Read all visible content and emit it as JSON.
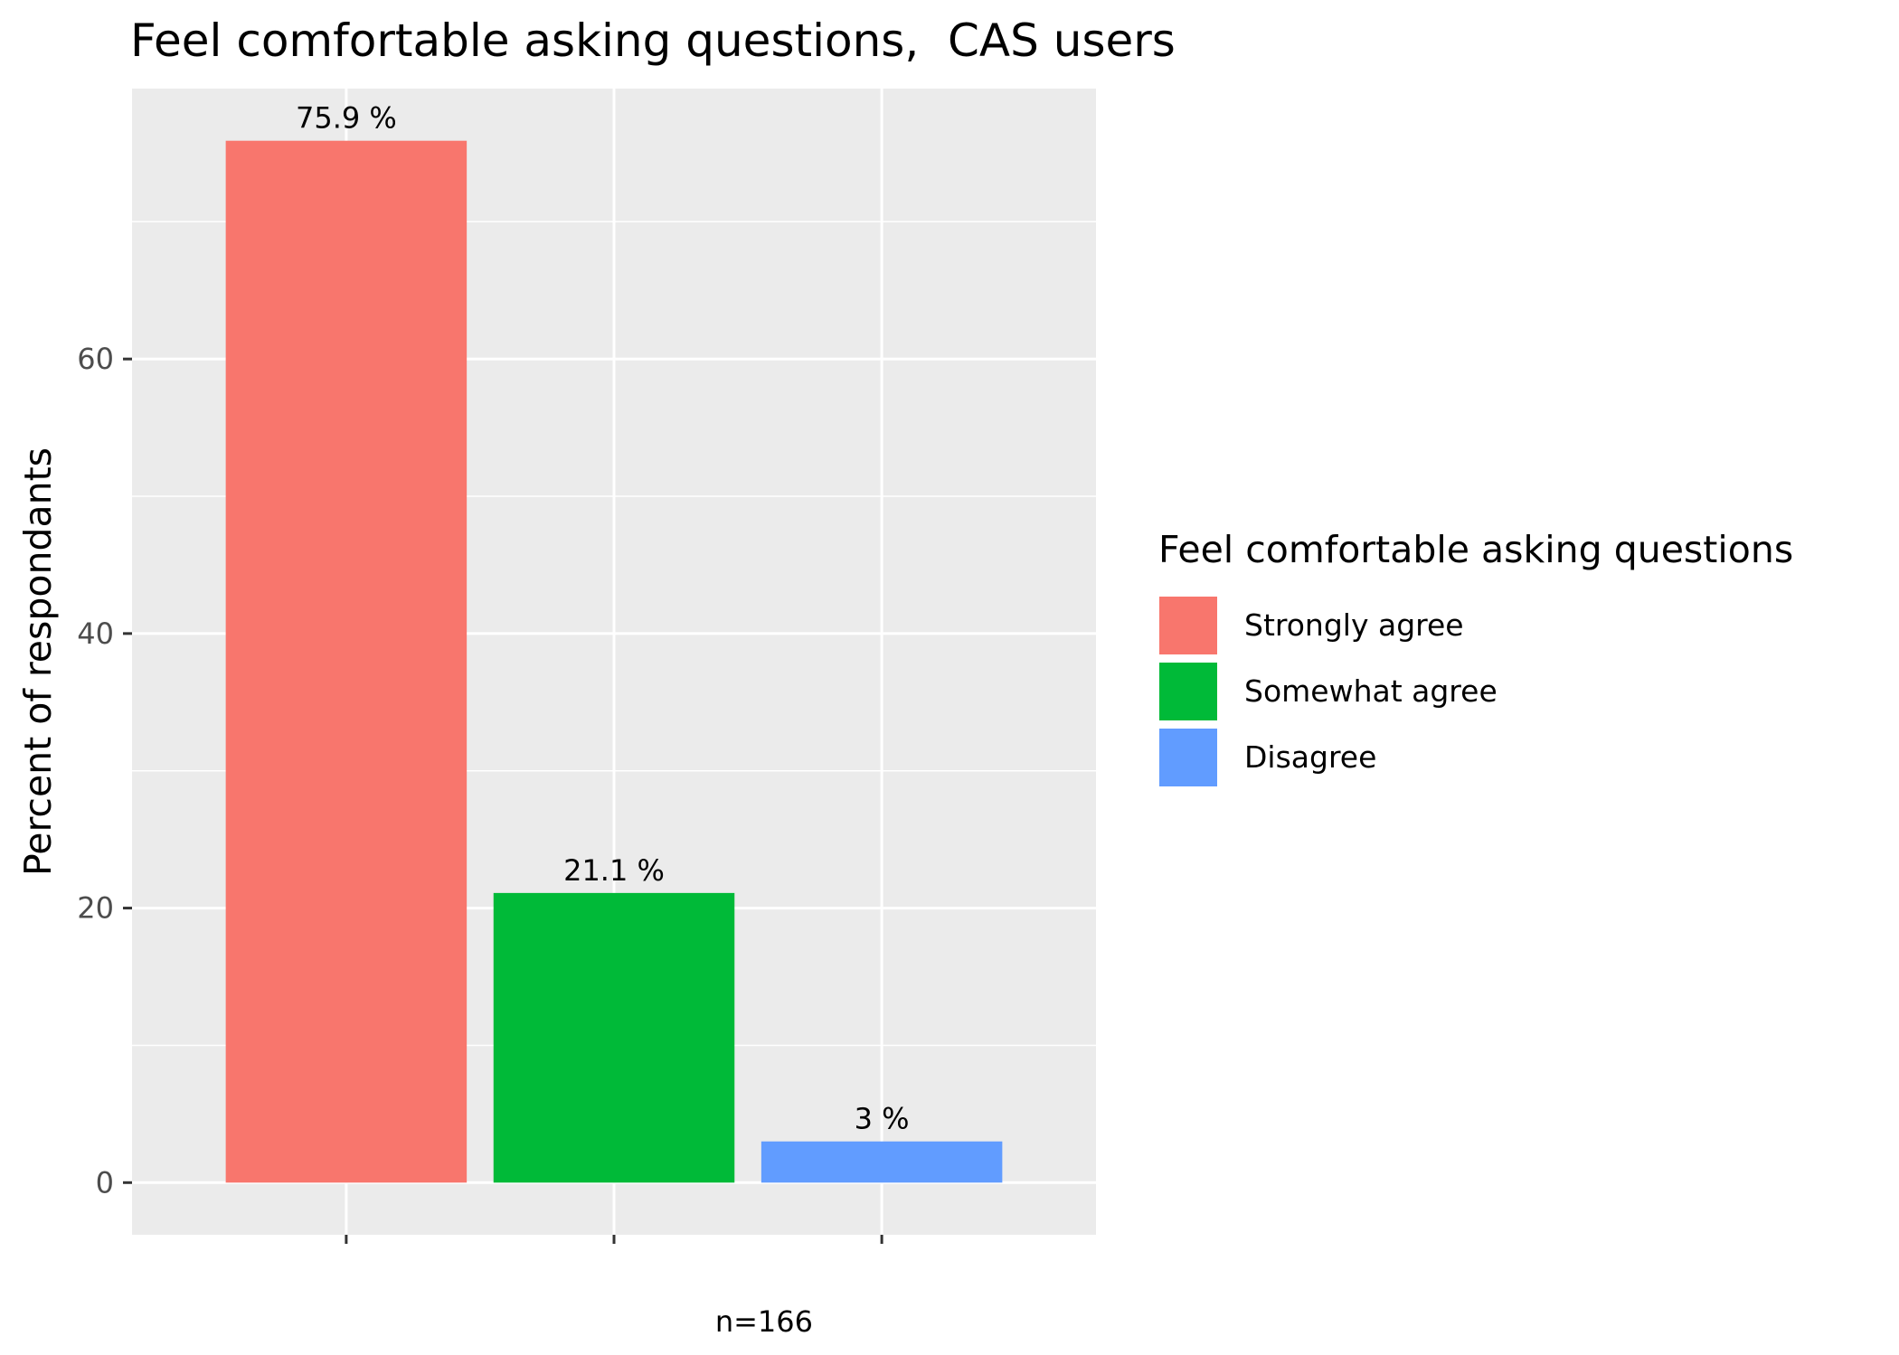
{
  "chart_data": {
    "type": "bar",
    "title": "Feel comfortable asking questions,  CAS users",
    "xlabel": "",
    "ylabel": "Percent of respondants",
    "categories": [
      "Strongly agree",
      "Somewhat agree",
      "Disagree"
    ],
    "values": [
      75.9,
      21.1,
      3.0
    ],
    "data_labels": [
      "75.9 %",
      "21.1 %",
      "3 %"
    ],
    "colors": [
      "#F8766D",
      "#00BA38",
      "#619CFF"
    ],
    "ylim": [
      -3.8,
      79.7
    ],
    "yticks": [
      0,
      20,
      40,
      60
    ],
    "ytick_labels": [
      "0",
      "20",
      "40",
      "60"
    ],
    "grid": true,
    "legend": {
      "title": "Feel comfortable asking questions",
      "placement": "right",
      "items": [
        {
          "label": "Strongly agree",
          "color": "#F8766D"
        },
        {
          "label": "Somewhat agree",
          "color": "#00BA38"
        },
        {
          "label": "Disagree",
          "color": "#619CFF"
        }
      ]
    },
    "caption": "n=166",
    "panel_color": "#EBEBEB",
    "grid_color": "#FFFFFF"
  }
}
